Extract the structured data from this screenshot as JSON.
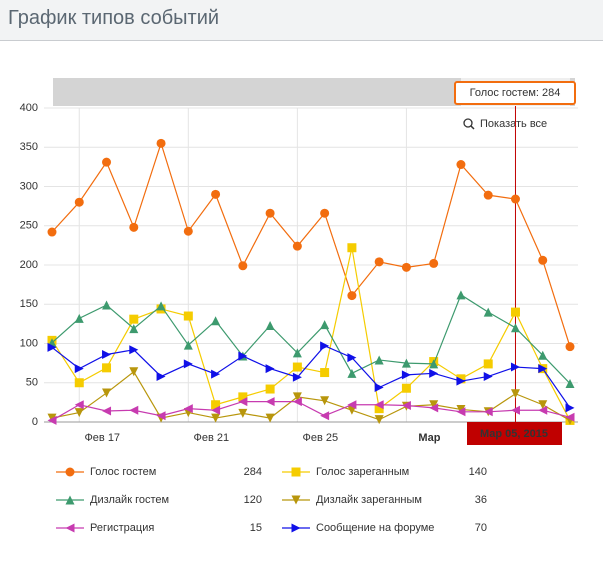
{
  "header": {
    "title": "График типов событий"
  },
  "chart_data": {
    "type": "line",
    "categories": [
      null,
      "Фев 17",
      null,
      null,
      null,
      "Фев 21",
      null,
      null,
      null,
      "Фев 25",
      null,
      null,
      null,
      "Мар",
      null,
      null,
      null,
      null,
      null,
      null
    ],
    "highlight": {
      "index": 17,
      "date_label": "Мар 05, 2015",
      "tooltip": "Голос гостем: 284",
      "series": 0
    },
    "zoom_button": "Показать все",
    "ylim": [
      0,
      400
    ],
    "yticks": [
      0,
      50,
      100,
      150,
      200,
      250,
      300,
      350,
      400
    ],
    "grid": true,
    "series": [
      {
        "name": "Голос гостем",
        "color": "#f26d0f",
        "marker": "circle",
        "values": [
          242,
          280,
          331,
          248,
          355,
          243,
          290,
          199,
          266,
          224,
          266,
          161,
          204,
          197,
          202,
          328,
          289,
          284,
          206,
          96
        ]
      },
      {
        "name": "Голос зареганным",
        "color": "#f5cc00",
        "marker": "square",
        "values": [
          104,
          50,
          69,
          131,
          144,
          135,
          22,
          32,
          42,
          70,
          63,
          222,
          17,
          43,
          77,
          55,
          74,
          140,
          68,
          2
        ]
      },
      {
        "name": "Дизлайк гостем",
        "color": "#3d9a6e",
        "marker": "triangle-up",
        "values": [
          101,
          132,
          149,
          119,
          148,
          98,
          129,
          84,
          123,
          88,
          124,
          62,
          79,
          75,
          74,
          162,
          140,
          120,
          85,
          49
        ]
      },
      {
        "name": "Дизлайк зареганным",
        "color": "#b8960c",
        "marker": "triangle-down",
        "values": [
          5,
          12,
          37,
          64,
          5,
          12,
          5,
          11,
          5,
          32,
          27,
          15,
          3,
          20,
          22,
          16,
          13,
          36,
          22,
          2
        ]
      },
      {
        "name": "Регистрация",
        "color": "#c73bb0",
        "marker": "triangle-left",
        "values": [
          2,
          22,
          14,
          15,
          8,
          17,
          15,
          26,
          26,
          26,
          8,
          22,
          22,
          21,
          18,
          13,
          13,
          15,
          15,
          6
        ]
      },
      {
        "name": "Сообщение на форуме",
        "color": "#1010e8",
        "marker": "triangle-right",
        "values": [
          95,
          68,
          86,
          92,
          58,
          74,
          61,
          84,
          68,
          57,
          97,
          82,
          44,
          60,
          62,
          52,
          58,
          70,
          68,
          18
        ]
      }
    ]
  }
}
